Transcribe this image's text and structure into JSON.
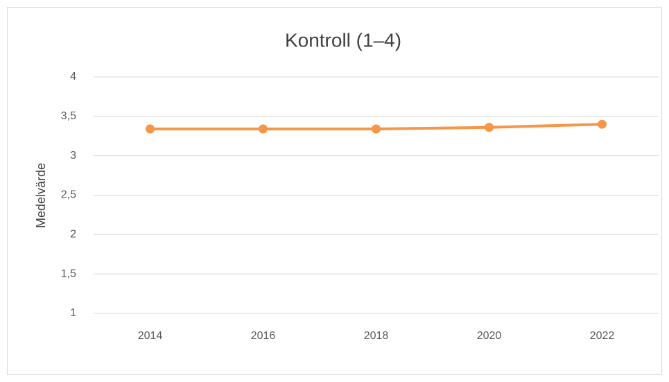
{
  "chart_data": {
    "type": "line",
    "title": "Kontroll (1–4)",
    "y_label": "Medelvärde",
    "categories": [
      "2014",
      "2016",
      "2018",
      "2020",
      "2022"
    ],
    "series": [
      {
        "name": "Kontroll",
        "color": "#f79646",
        "values": [
          3.34,
          3.34,
          3.34,
          3.36,
          3.4
        ]
      }
    ],
    "ylim": [
      1,
      4
    ],
    "yticks": [
      1,
      {
        "value": 1.5,
        "label": "1,5"
      },
      2,
      {
        "value": 2.5,
        "label": "2,5"
      },
      3,
      {
        "value": 3.5,
        "label": "3,5"
      },
      4
    ],
    "grid": true
  }
}
